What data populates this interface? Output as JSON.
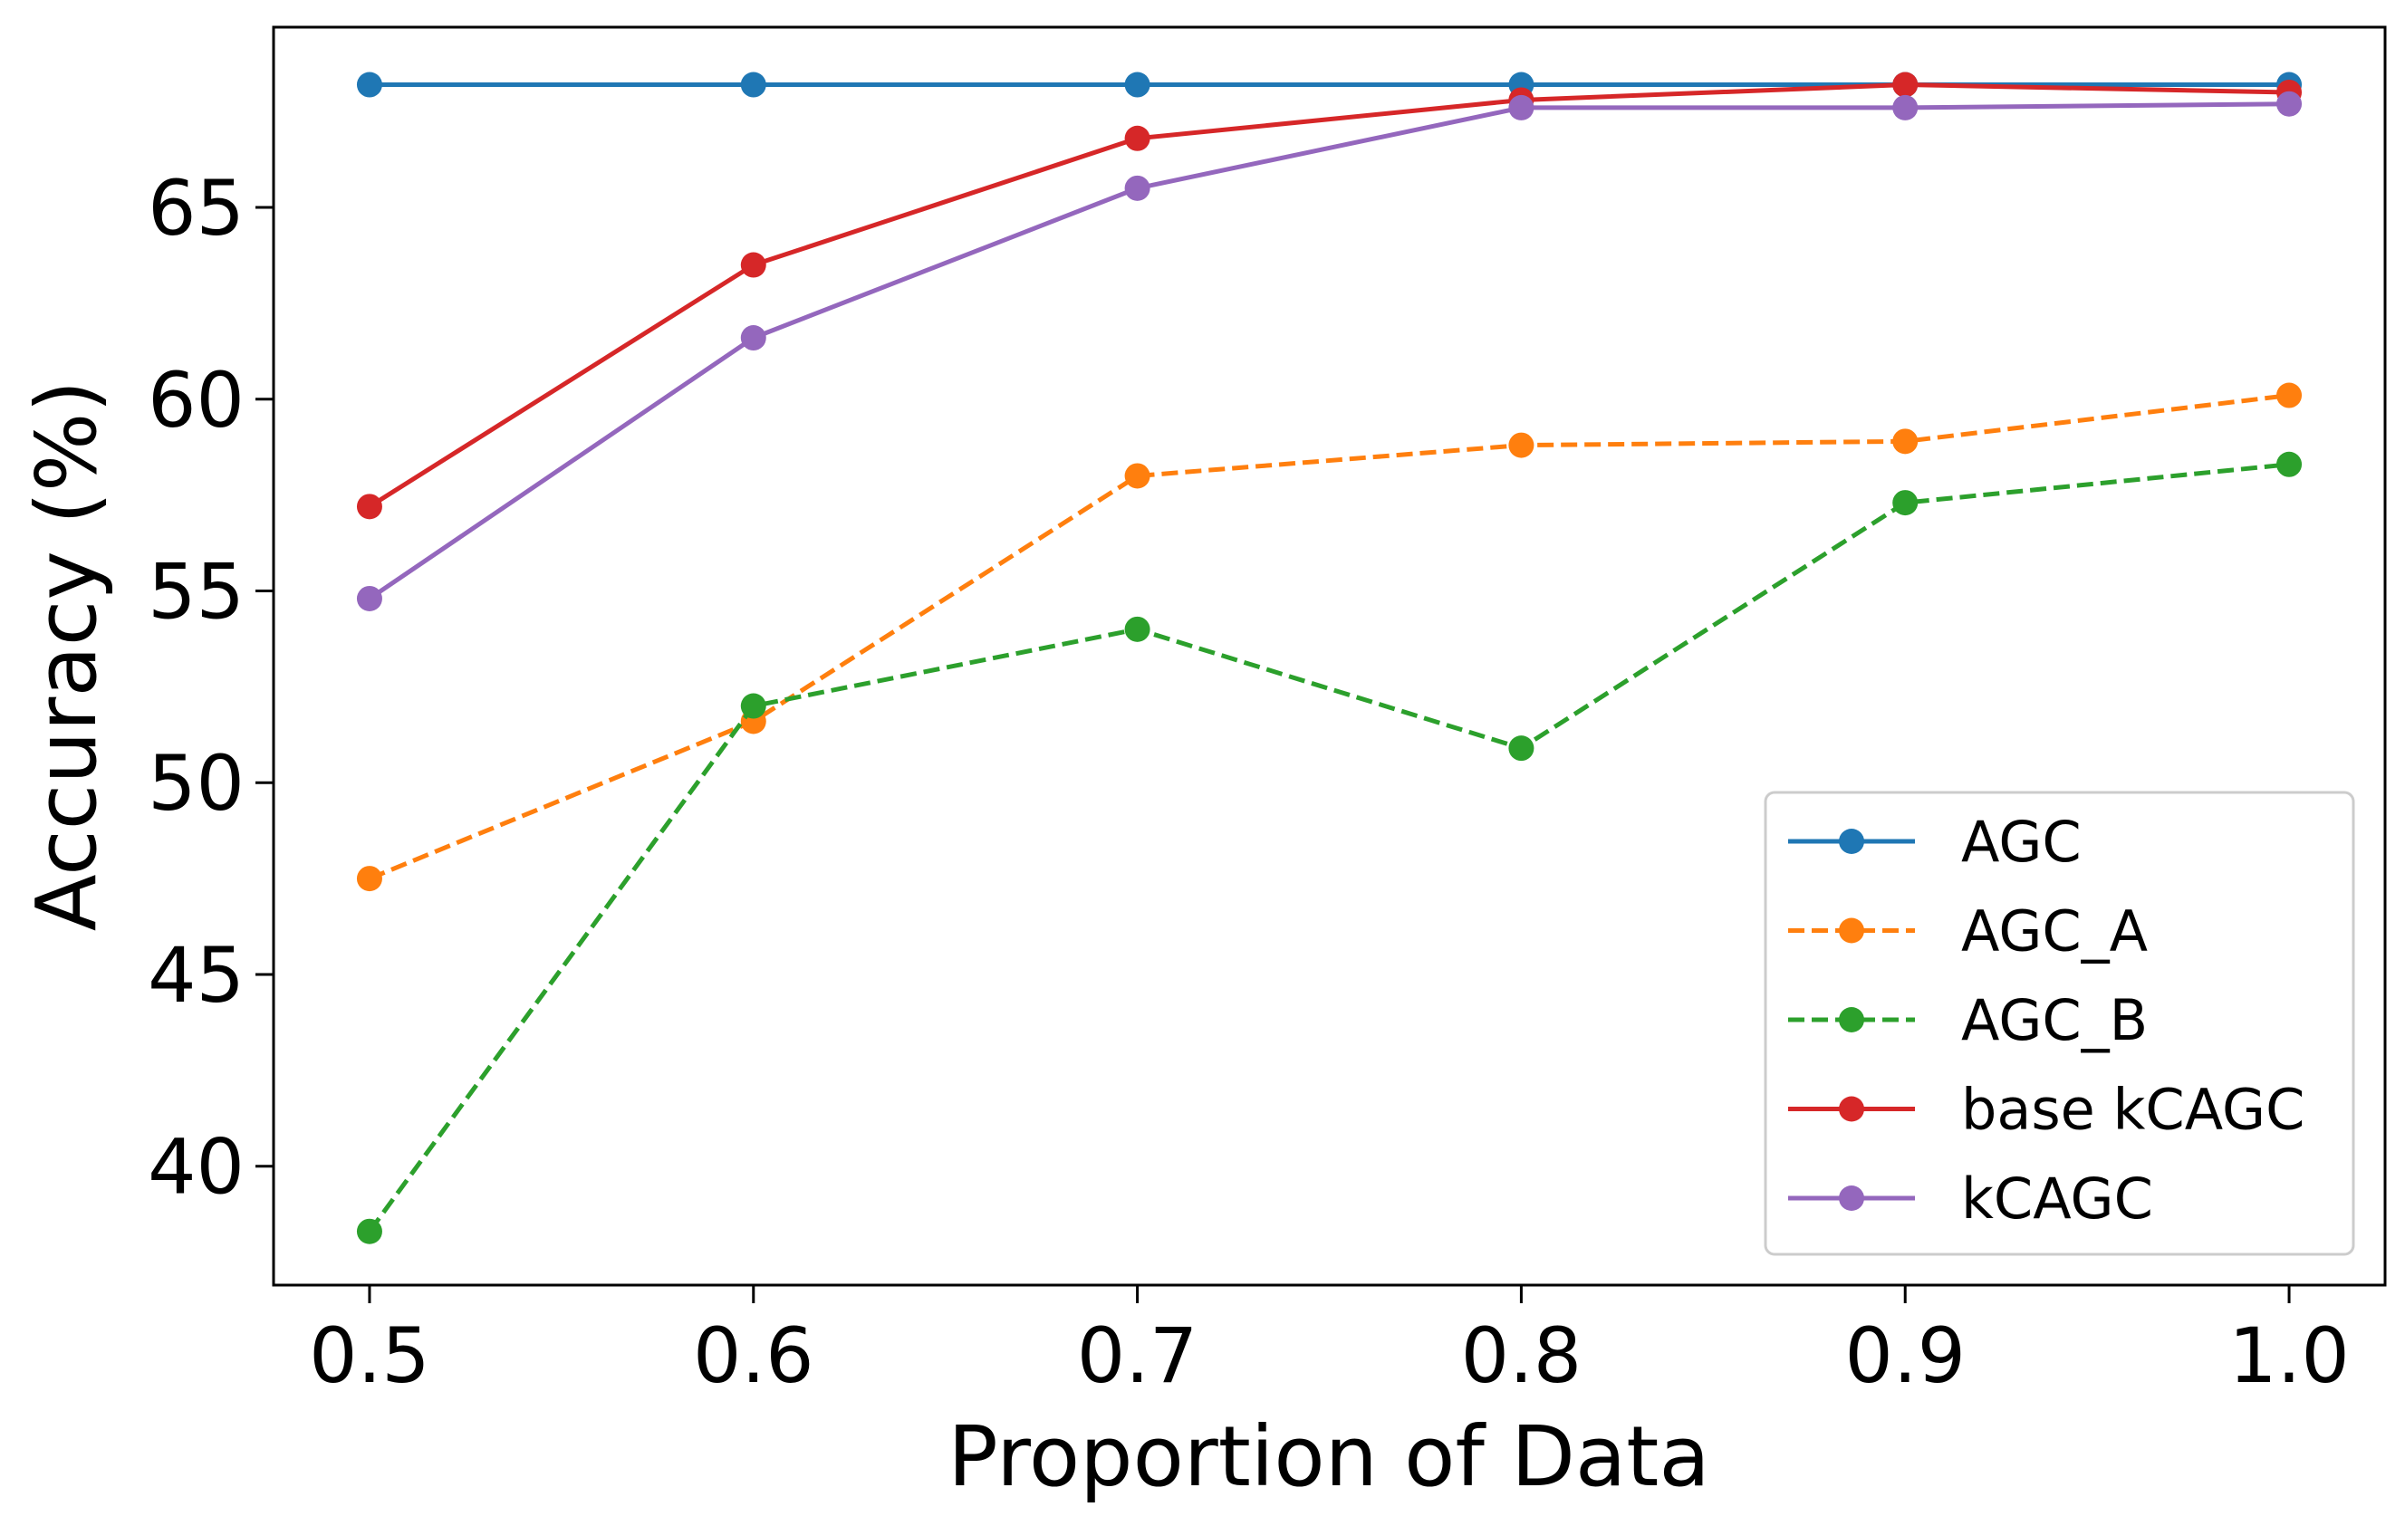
{
  "chart_data": {
    "type": "line",
    "title": "",
    "xlabel": "Proportion of Data",
    "ylabel": "Accuracy (%)",
    "x": [
      0.5,
      0.6,
      0.7,
      0.8,
      0.9,
      1.0
    ],
    "xticks": [
      "0.5",
      "0.6",
      "0.7",
      "0.8",
      "0.9",
      "1.0"
    ],
    "yticks": [
      "40",
      "45",
      "50",
      "55",
      "60",
      "65"
    ],
    "xlim": [
      0.475,
      1.025
    ],
    "ylim": [
      36.9,
      69.7
    ],
    "grid": false,
    "legend_position": "lower-right",
    "series": [
      {
        "name": "AGC",
        "values": [
          68.2,
          68.2,
          68.2,
          68.2,
          68.2,
          68.2
        ],
        "color": "#1f77b4",
        "linestyle": "solid"
      },
      {
        "name": "AGC_A",
        "values": [
          47.5,
          51.6,
          58.0,
          58.8,
          58.9,
          60.1
        ],
        "color": "#ff7f0e",
        "linestyle": "dashed"
      },
      {
        "name": "AGC_B",
        "values": [
          38.3,
          52.0,
          54.0,
          50.9,
          57.3,
          58.3
        ],
        "color": "#2ca02c",
        "linestyle": "dashed"
      },
      {
        "name": "base kCAGC",
        "values": [
          57.2,
          63.5,
          66.8,
          67.8,
          68.2,
          68.0
        ],
        "color": "#d62728",
        "linestyle": "solid"
      },
      {
        "name": "kCAGC",
        "values": [
          54.8,
          61.6,
          65.5,
          67.6,
          67.6,
          67.7
        ],
        "color": "#9467bd",
        "linestyle": "solid"
      }
    ]
  }
}
